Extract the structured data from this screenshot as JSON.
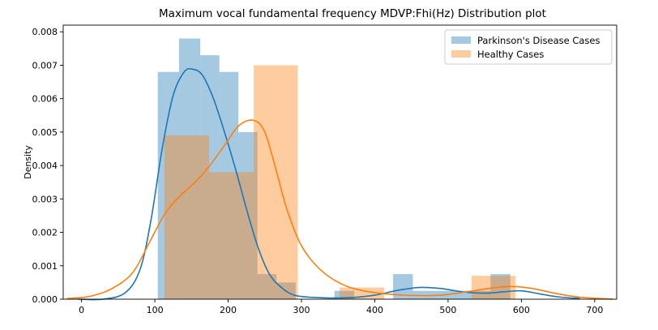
{
  "chart_data": {
    "type": "histogram+kde",
    "title": "Maximum vocal fundamental frequency MDVP:Fhi(Hz) Distribution plot",
    "xlabel": "",
    "ylabel": "Density",
    "xlim": [
      -25,
      730
    ],
    "ylim": [
      0,
      0.0082
    ],
    "x_ticks": [
      0,
      100,
      200,
      300,
      400,
      500,
      600,
      700
    ],
    "y_ticks": [
      0.0,
      0.001,
      0.002,
      0.003,
      0.004,
      0.005,
      0.006,
      0.007,
      0.008
    ],
    "y_tick_labels": [
      "0.000",
      "0.001",
      "0.002",
      "0.003",
      "0.004",
      "0.005",
      "0.006",
      "0.007",
      "0.008"
    ],
    "legend_position": "top-right",
    "series": [
      {
        "name": "Parkinson's Disease Cases",
        "color": "#1f77b4",
        "bars": [
          {
            "x0": 104,
            "x1": 133,
            "density": 0.0068
          },
          {
            "x0": 133,
            "x1": 162,
            "density": 0.0078
          },
          {
            "x0": 162,
            "x1": 188,
            "density": 0.0073
          },
          {
            "x0": 188,
            "x1": 214,
            "density": 0.0068
          },
          {
            "x0": 214,
            "x1": 240,
            "density": 0.005
          },
          {
            "x0": 240,
            "x1": 266,
            "density": 0.00075
          },
          {
            "x0": 266,
            "x1": 292,
            "density": 0.0005
          },
          {
            "x0": 345,
            "x1": 372,
            "density": 0.00025
          },
          {
            "x0": 372,
            "x1": 425,
            "density": 0.0
          },
          {
            "x0": 425,
            "x1": 452,
            "density": 0.00075
          },
          {
            "x0": 452,
            "x1": 558,
            "density": 0.00025
          },
          {
            "x0": 558,
            "x1": 585,
            "density": 0.00075
          }
        ],
        "kde": [
          [
            -5,
            0.0
          ],
          [
            30,
            0.0
          ],
          [
            60,
            0.0002
          ],
          [
            80,
            0.0009
          ],
          [
            95,
            0.0024
          ],
          [
            110,
            0.0045
          ],
          [
            125,
            0.0061
          ],
          [
            140,
            0.0068
          ],
          [
            152,
            0.00688
          ],
          [
            165,
            0.0067
          ],
          [
            180,
            0.006
          ],
          [
            195,
            0.005
          ],
          [
            210,
            0.0039
          ],
          [
            225,
            0.0027
          ],
          [
            240,
            0.0016
          ],
          [
            255,
            0.0008
          ],
          [
            270,
            0.0004
          ],
          [
            290,
            0.00012
          ],
          [
            320,
            5e-05
          ],
          [
            360,
            4e-05
          ],
          [
            400,
            0.00012
          ],
          [
            430,
            0.00026
          ],
          [
            460,
            0.00035
          ],
          [
            490,
            0.00032
          ],
          [
            520,
            0.00022
          ],
          [
            550,
            0.00018
          ],
          [
            575,
            0.00022
          ],
          [
            600,
            0.00025
          ],
          [
            625,
            0.00016
          ],
          [
            650,
            7e-05
          ],
          [
            680,
            2e-05
          ]
        ]
      },
      {
        "name": "Healthy Cases",
        "color": "#ff7f0e",
        "bars": [
          {
            "x0": 113,
            "x1": 174,
            "density": 0.0049
          },
          {
            "x0": 174,
            "x1": 235,
            "density": 0.0038
          },
          {
            "x0": 235,
            "x1": 295,
            "density": 0.007
          },
          {
            "x0": 352,
            "x1": 413,
            "density": 0.00035
          },
          {
            "x0": 532,
            "x1": 592,
            "density": 0.0007
          }
        ],
        "kde": [
          [
            -20,
            2e-05
          ],
          [
            10,
            8e-05
          ],
          [
            40,
            0.0003
          ],
          [
            70,
            0.0008
          ],
          [
            95,
            0.0018
          ],
          [
            115,
            0.0026
          ],
          [
            135,
            0.0031
          ],
          [
            155,
            0.0035
          ],
          [
            175,
            0.004
          ],
          [
            195,
            0.0046
          ],
          [
            215,
            0.0052
          ],
          [
            235,
            0.00535
          ],
          [
            250,
            0.005
          ],
          [
            265,
            0.0039
          ],
          [
            280,
            0.0027
          ],
          [
            300,
            0.0016
          ],
          [
            325,
            0.0009
          ],
          [
            355,
            0.00045
          ],
          [
            385,
            0.00025
          ],
          [
            420,
            0.00015
          ],
          [
            455,
            0.00011
          ],
          [
            490,
            0.00012
          ],
          [
            525,
            0.00022
          ],
          [
            555,
            0.00032
          ],
          [
            585,
            0.00038
          ],
          [
            615,
            0.00032
          ],
          [
            645,
            0.00018
          ],
          [
            680,
            6e-05
          ],
          [
            725,
            0.0
          ]
        ]
      }
    ]
  }
}
